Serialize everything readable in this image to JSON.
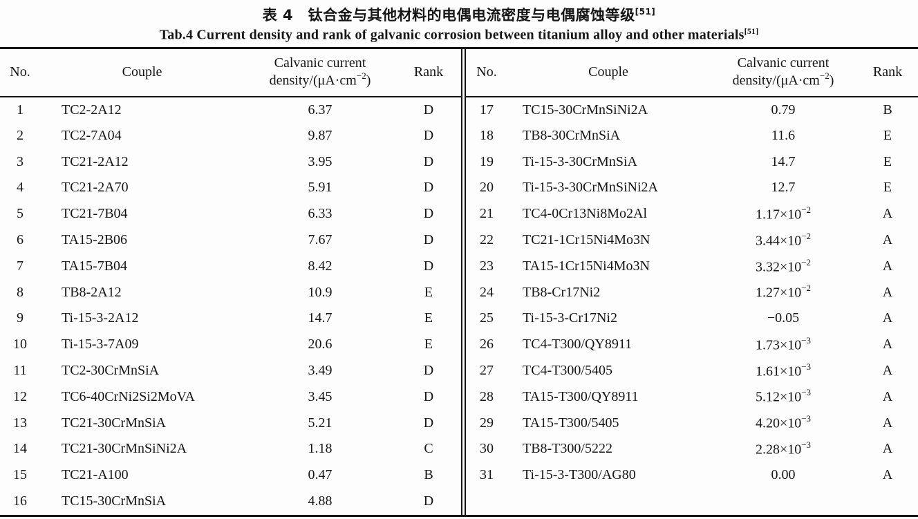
{
  "page": {
    "title_zh": "表 4　钛合金与其他材料的电偶电流密度与电偶腐蚀等级",
    "title_zh_sup": "[51]",
    "title_en": "Tab.4 Current density and rank of galvanic corrosion between titanium alloy and other materials",
    "title_en_sup": "[51]"
  },
  "colors": {
    "background": "#fdfdfd",
    "text": "#161616",
    "rule": "#151515"
  },
  "table": {
    "headers": {
      "no": "No.",
      "couple": "Couple",
      "density_line1": "Calvanic current",
      "density_line2_pre": "density/(μA·cm",
      "density_sup": "−2",
      "density_line2_post": ")",
      "rank": "Rank"
    },
    "left_rows": [
      {
        "no": "1",
        "couple": "TC2-2A12",
        "density": "6.37",
        "density_exp": "",
        "rank": "D"
      },
      {
        "no": "2",
        "couple": "TC2-7A04",
        "density": "9.87",
        "density_exp": "",
        "rank": "D"
      },
      {
        "no": "3",
        "couple": "TC21-2A12",
        "density": "3.95",
        "density_exp": "",
        "rank": "D"
      },
      {
        "no": "4",
        "couple": "TC21-2A70",
        "density": "5.91",
        "density_exp": "",
        "rank": "D"
      },
      {
        "no": "5",
        "couple": "TC21-7B04",
        "density": "6.33",
        "density_exp": "",
        "rank": "D"
      },
      {
        "no": "6",
        "couple": "TA15-2B06",
        "density": "7.67",
        "density_exp": "",
        "rank": "D"
      },
      {
        "no": "7",
        "couple": "TA15-7B04",
        "density": "8.42",
        "density_exp": "",
        "rank": "D"
      },
      {
        "no": "8",
        "couple": "TB8-2A12",
        "density": "10.9",
        "density_exp": "",
        "rank": "E"
      },
      {
        "no": "9",
        "couple": "Ti-15-3-2A12",
        "density": "14.7",
        "density_exp": "",
        "rank": "E"
      },
      {
        "no": "10",
        "couple": "Ti-15-3-7A09",
        "density": "20.6",
        "density_exp": "",
        "rank": "E"
      },
      {
        "no": "11",
        "couple": "TC2-30CrMnSiA",
        "density": "3.49",
        "density_exp": "",
        "rank": "D"
      },
      {
        "no": "12",
        "couple": "TC6-40CrNi2Si2MoVA",
        "density": "3.45",
        "density_exp": "",
        "rank": "D"
      },
      {
        "no": "13",
        "couple": "TC21-30CrMnSiA",
        "density": "5.21",
        "density_exp": "",
        "rank": "D"
      },
      {
        "no": "14",
        "couple": "TC21-30CrMnSiNi2A",
        "density": "1.18",
        "density_exp": "",
        "rank": "C"
      },
      {
        "no": "15",
        "couple": "TC21-A100",
        "density": "0.47",
        "density_exp": "",
        "rank": "B"
      },
      {
        "no": "16",
        "couple": "TC15-30CrMnSiA",
        "density": "4.88",
        "density_exp": "",
        "rank": "D"
      }
    ],
    "right_rows": [
      {
        "no": "17",
        "couple": "TC15-30CrMnSiNi2A",
        "density": "0.79",
        "density_exp": "",
        "rank": "B"
      },
      {
        "no": "18",
        "couple": "TB8-30CrMnSiA",
        "density": "11.6",
        "density_exp": "",
        "rank": "E"
      },
      {
        "no": "19",
        "couple": "Ti-15-3-30CrMnSiA",
        "density": "14.7",
        "density_exp": "",
        "rank": "E"
      },
      {
        "no": "20",
        "couple": "Ti-15-3-30CrMnSiNi2A",
        "density": "12.7",
        "density_exp": "",
        "rank": "E"
      },
      {
        "no": "21",
        "couple": "TC4-0Cr13Ni8Mo2Al",
        "density": "1.17×10",
        "density_exp": "−2",
        "rank": "A"
      },
      {
        "no": "22",
        "couple": "TC21-1Cr15Ni4Mo3N",
        "density": "3.44×10",
        "density_exp": "−2",
        "rank": "A"
      },
      {
        "no": "23",
        "couple": "TA15-1Cr15Ni4Mo3N",
        "density": "3.32×10",
        "density_exp": "−2",
        "rank": "A"
      },
      {
        "no": "24",
        "couple": "TB8-Cr17Ni2",
        "density": "1.27×10",
        "density_exp": "−2",
        "rank": "A"
      },
      {
        "no": "25",
        "couple": "Ti-15-3-Cr17Ni2",
        "density": "−0.05",
        "density_exp": "",
        "rank": "A"
      },
      {
        "no": "26",
        "couple": "TC4-T300/QY8911",
        "density": "1.73×10",
        "density_exp": "−3",
        "rank": "A"
      },
      {
        "no": "27",
        "couple": "TC4-T300/5405",
        "density": "1.61×10",
        "density_exp": "−3",
        "rank": "A"
      },
      {
        "no": "28",
        "couple": "TA15-T300/QY8911",
        "density": "5.12×10",
        "density_exp": "−3",
        "rank": "A"
      },
      {
        "no": "29",
        "couple": "TA15-T300/5405",
        "density": "4.20×10",
        "density_exp": "−3",
        "rank": "A"
      },
      {
        "no": "30",
        "couple": "TB8-T300/5222",
        "density": "2.28×10",
        "density_exp": "−3",
        "rank": "A"
      },
      {
        "no": "31",
        "couple": "Ti-15-3-T300/AG80",
        "density": "0.00",
        "density_exp": "",
        "rank": "A"
      }
    ]
  }
}
